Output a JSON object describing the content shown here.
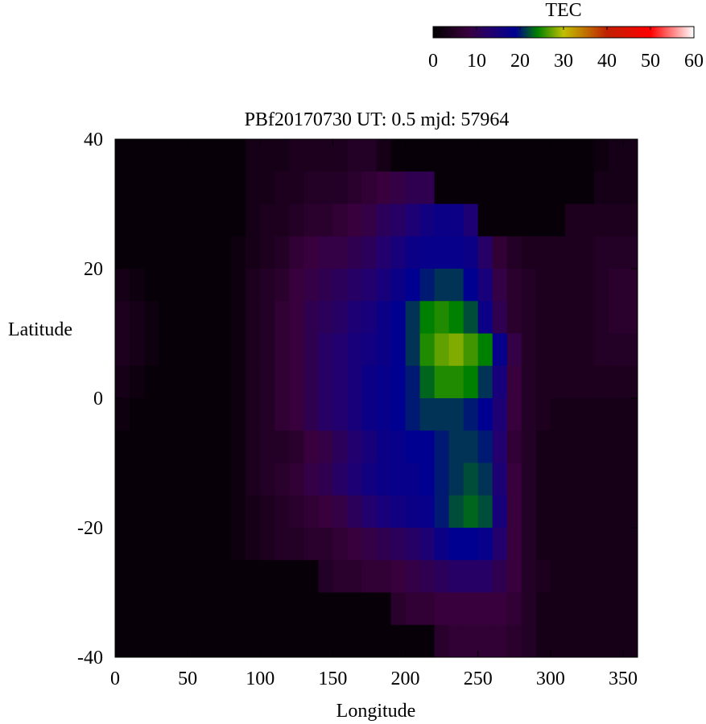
{
  "chart_data": {
    "type": "heatmap",
    "title": "PBf20170730  UT: 0.5  mjd: 57964",
    "xlabel": "Longitude",
    "ylabel": "Latitude",
    "xlim": [
      0,
      360
    ],
    "ylim": [
      -40,
      40
    ],
    "xticks": [
      "0",
      "50",
      "100",
      "150",
      "200",
      "250",
      "300",
      "350"
    ],
    "xtick_values": [
      0,
      50,
      100,
      150,
      200,
      250,
      300,
      350
    ],
    "yticks": [
      "40",
      "20",
      "0",
      "-20",
      "-40"
    ],
    "ytick_values": [
      40,
      20,
      0,
      -20,
      -40
    ],
    "grid": false,
    "colorbar": {
      "label": "TEC",
      "range": [
        0,
        60
      ],
      "ticks": [
        "0",
        "10",
        "20",
        "30",
        "40",
        "50",
        "60"
      ],
      "placement": "top-right",
      "colormap": [
        {
          "value": 0,
          "color": "#000000"
        },
        {
          "value": 8,
          "color": "#38003c"
        },
        {
          "value": 13,
          "color": "#22006e"
        },
        {
          "value": 19,
          "color": "#000090"
        },
        {
          "value": 24,
          "color": "#008000"
        },
        {
          "value": 30,
          "color": "#c0c000"
        },
        {
          "value": 40,
          "color": "#c02000"
        },
        {
          "value": 50,
          "color": "#ff0000"
        },
        {
          "value": 60,
          "color": "#ffffff"
        }
      ]
    },
    "lon_centers": [
      5,
      15,
      25,
      35,
      45,
      55,
      65,
      75,
      85,
      95,
      105,
      115,
      125,
      135,
      145,
      155,
      165,
      175,
      185,
      195,
      205,
      215,
      225,
      235,
      245,
      255,
      265,
      275,
      285,
      295,
      305,
      315,
      325,
      335,
      345,
      355
    ],
    "lat_centers": [
      37.5,
      32.5,
      27.5,
      22.5,
      17.5,
      12.5,
      7.5,
      2.5,
      -2.5,
      -7.5,
      -12.5,
      -17.5,
      -22.5,
      -27.5,
      -32.5,
      -37.5
    ],
    "values": [
      [
        1,
        1,
        1,
        1,
        1,
        1,
        1,
        1,
        1,
        3,
        3,
        3,
        4,
        4,
        4,
        4,
        5,
        5,
        3,
        1,
        1,
        1,
        1,
        1,
        1,
        1,
        1,
        1,
        1,
        1,
        1,
        1,
        1,
        2,
        3,
        3
      ],
      [
        1,
        1,
        1,
        1,
        1,
        1,
        1,
        1,
        1,
        3,
        3,
        4,
        4,
        5,
        5,
        5,
        6,
        7,
        8,
        9,
        10,
        10,
        1,
        1,
        1,
        1,
        1,
        1,
        1,
        1,
        1,
        1,
        1,
        3,
        3,
        3
      ],
      [
        1,
        1,
        1,
        1,
        1,
        1,
        1,
        1,
        1,
        3,
        4,
        4,
        5,
        6,
        6,
        7,
        8,
        9,
        11,
        12,
        14,
        16,
        17,
        17,
        14,
        1,
        1,
        1,
        1,
        1,
        1,
        4,
        4,
        4,
        4,
        4
      ],
      [
        1,
        1,
        1,
        1,
        1,
        1,
        1,
        1,
        2,
        3,
        4,
        5,
        7,
        8,
        9,
        9,
        10,
        11,
        13,
        15,
        17,
        18,
        18,
        18,
        17,
        12,
        7,
        5,
        4,
        4,
        4,
        4,
        4,
        5,
        5,
        5
      ],
      [
        3,
        2,
        1,
        1,
        1,
        1,
        1,
        1,
        2,
        4,
        5,
        6,
        8,
        9,
        10,
        11,
        12,
        13,
        15,
        17,
        19,
        20,
        21,
        21,
        19,
        15,
        9,
        6,
        5,
        4,
        4,
        4,
        4,
        5,
        6,
        6
      ],
      [
        4,
        3,
        2,
        1,
        1,
        1,
        1,
        1,
        2,
        4,
        5,
        7,
        8,
        10,
        11,
        12,
        14,
        15,
        17,
        19,
        21,
        24,
        25,
        24,
        22,
        17,
        10,
        6,
        5,
        4,
        4,
        4,
        4,
        5,
        6,
        6
      ],
      [
        4,
        3,
        2,
        1,
        1,
        1,
        1,
        1,
        2,
        4,
        5,
        7,
        8,
        10,
        12,
        13,
        15,
        16,
        17,
        19,
        21,
        25,
        27,
        28,
        26,
        24,
        18,
        9,
        5,
        4,
        4,
        4,
        4,
        5,
        5,
        5
      ],
      [
        3,
        2,
        1,
        1,
        1,
        1,
        1,
        1,
        2,
        4,
        5,
        7,
        8,
        10,
        12,
        13,
        15,
        17,
        18,
        19,
        20,
        23,
        25,
        25,
        24,
        21,
        15,
        8,
        5,
        4,
        4,
        4,
        4,
        4,
        4,
        4
      ],
      [
        2,
        1,
        1,
        1,
        1,
        1,
        1,
        1,
        2,
        4,
        5,
        7,
        8,
        10,
        12,
        13,
        15,
        17,
        18,
        19,
        20,
        21,
        21,
        21,
        20,
        19,
        14,
        8,
        5,
        4,
        3,
        3,
        3,
        3,
        3,
        3
      ],
      [
        1,
        1,
        1,
        1,
        1,
        1,
        1,
        1,
        2,
        4,
        5,
        5,
        6,
        8,
        9,
        11,
        13,
        15,
        17,
        18,
        19,
        19,
        20,
        21,
        21,
        20,
        13,
        7,
        5,
        3,
        3,
        3,
        3,
        3,
        3,
        3
      ],
      [
        1,
        1,
        1,
        1,
        1,
        1,
        1,
        1,
        2,
        4,
        5,
        6,
        7,
        9,
        10,
        12,
        14,
        16,
        17,
        18,
        18,
        19,
        20,
        21,
        22,
        21,
        14,
        8,
        5,
        3,
        3,
        3,
        3,
        3,
        3,
        3
      ],
      [
        1,
        1,
        1,
        1,
        1,
        1,
        1,
        1,
        2,
        3,
        4,
        5,
        6,
        7,
        8,
        9,
        11,
        13,
        15,
        16,
        17,
        18,
        20,
        22,
        23,
        22,
        15,
        8,
        5,
        3,
        3,
        3,
        3,
        3,
        3,
        3
      ],
      [
        1,
        1,
        1,
        1,
        1,
        1,
        1,
        1,
        2,
        3,
        4,
        5,
        5,
        6,
        6,
        7,
        8,
        9,
        10,
        11,
        12,
        14,
        17,
        19,
        19,
        18,
        13,
        8,
        5,
        3,
        3,
        3,
        3,
        3,
        3,
        3
      ],
      [
        1,
        1,
        1,
        1,
        1,
        1,
        1,
        1,
        1,
        1,
        1,
        1,
        1,
        1,
        5,
        6,
        6,
        7,
        7,
        8,
        9,
        10,
        11,
        12,
        12,
        12,
        10,
        8,
        5,
        4,
        3,
        3,
        3,
        3,
        3,
        3
      ],
      [
        1,
        1,
        1,
        1,
        1,
        1,
        1,
        1,
        1,
        1,
        1,
        1,
        1,
        1,
        1,
        1,
        1,
        1,
        1,
        6,
        7,
        7,
        8,
        8,
        8,
        8,
        8,
        7,
        5,
        3,
        3,
        3,
        3,
        3,
        3,
        3
      ],
      [
        1,
        1,
        1,
        1,
        1,
        1,
        1,
        1,
        1,
        1,
        1,
        1,
        1,
        1,
        1,
        1,
        1,
        1,
        1,
        1,
        1,
        1,
        6,
        7,
        7,
        7,
        7,
        6,
        5,
        3,
        3,
        3,
        3,
        3,
        3,
        3
      ]
    ]
  }
}
